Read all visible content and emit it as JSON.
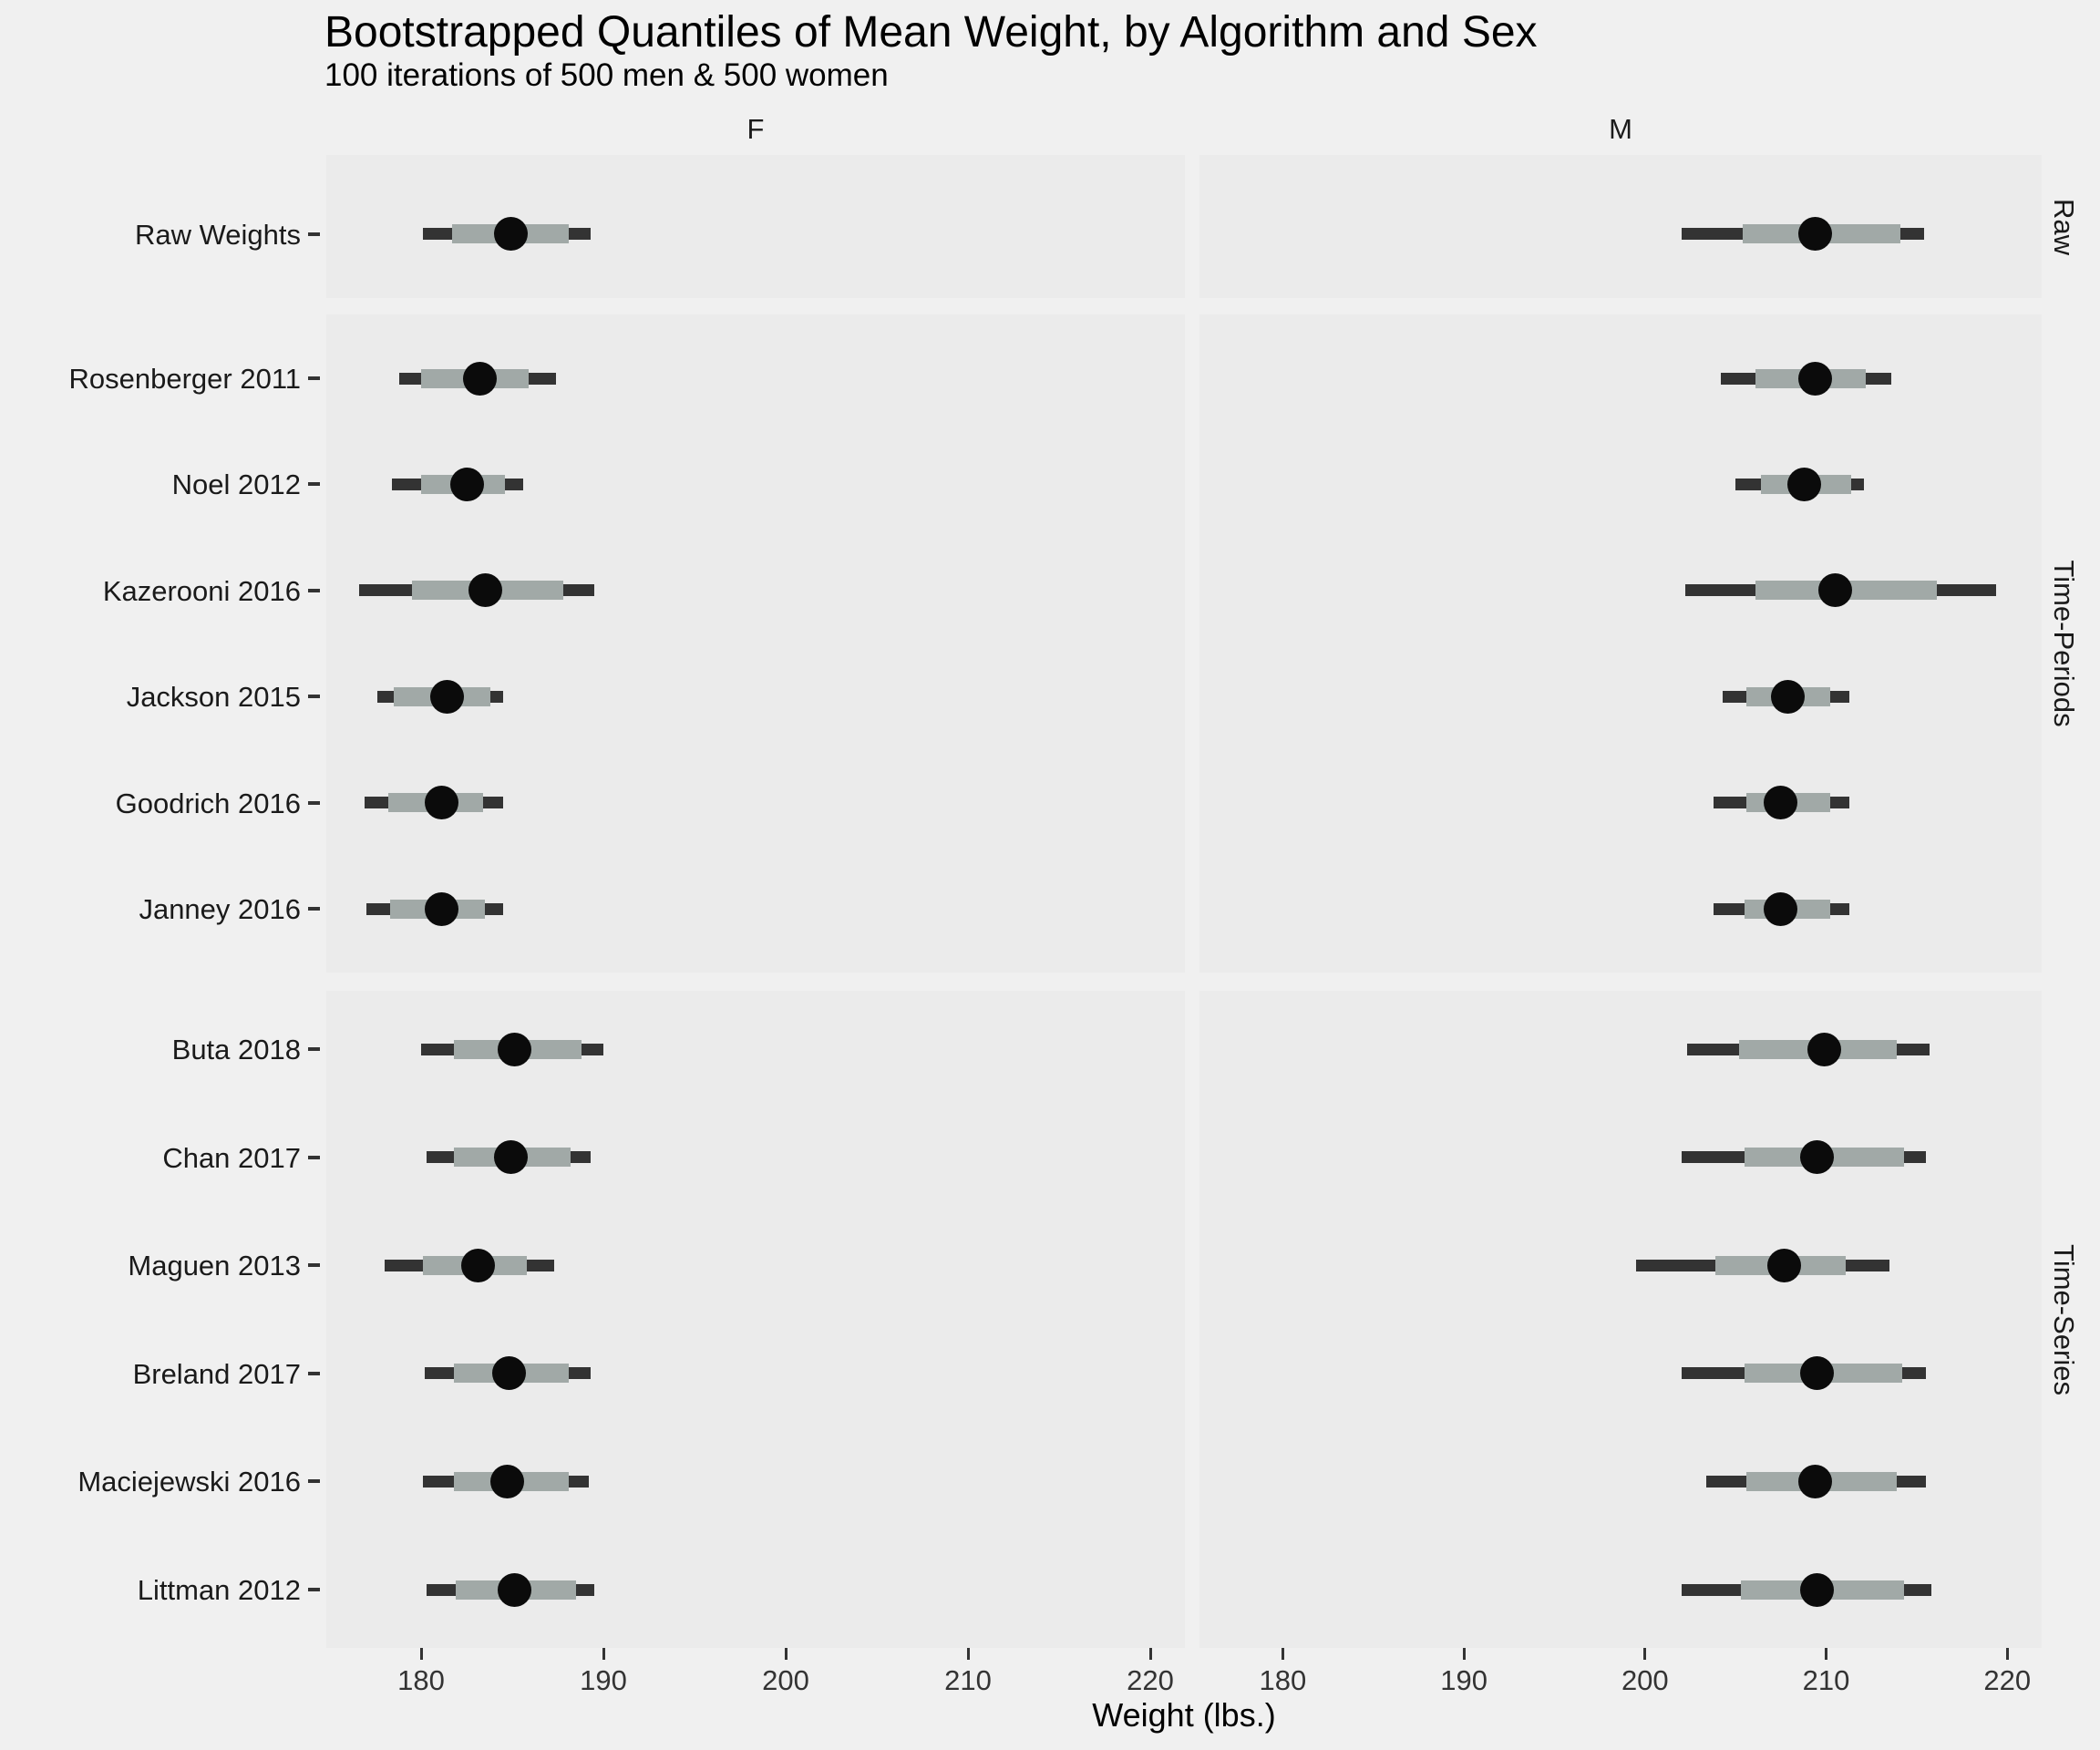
{
  "title": "Bootstrapped Quantiles of Mean Weight, by Algorithm and Sex",
  "subtitle": "100 iterations of 500 men & 500 women",
  "colors": {
    "figure_bg": "#F0F0F0",
    "panel_bg": "#EBEBEB",
    "interquartile_box": "#A1A9A7",
    "outer_range_bar": "#333333",
    "median_point": "#0B0B0B",
    "axis_text": "#333333",
    "label_text": "#1A1A1A"
  },
  "chart_data": {
    "type": "pointrange",
    "orientation": "horizontal",
    "x_unit": "lbs",
    "facet_columns": [
      "F",
      "M"
    ],
    "facet_rows": [
      "Raw",
      "Time-Periods",
      "Time-Series"
    ],
    "x_axis": {
      "label": "Weight (lbs.)",
      "ticks": [
        180,
        190,
        200,
        210,
        220
      ],
      "grid": false
    },
    "groups": [
      {
        "facet_row": "Raw",
        "rows": [
          {
            "label": "Raw Weights",
            "F": {
              "median": 184.9,
              "box": [
                181.7,
                188.1
              ],
              "range": [
                180.1,
                189.3
              ]
            },
            "M": {
              "median": 209.4,
              "box": [
                205.4,
                214.1
              ],
              "range": [
                202.0,
                215.4
              ]
            }
          }
        ]
      },
      {
        "facet_row": "Time-Periods",
        "rows": [
          {
            "label": "Rosenberger 2011",
            "F": {
              "median": 183.2,
              "box": [
                180.0,
                185.9
              ],
              "range": [
                178.8,
                187.4
              ]
            },
            "M": {
              "median": 209.4,
              "box": [
                206.1,
                212.2
              ],
              "range": [
                204.2,
                213.6
              ]
            }
          },
          {
            "label": "Noel 2012",
            "F": {
              "median": 182.5,
              "box": [
                180.0,
                184.6
              ],
              "range": [
                178.4,
                185.6
              ]
            },
            "M": {
              "median": 208.8,
              "box": [
                206.4,
                211.4
              ],
              "range": [
                205.0,
                212.1
              ]
            }
          },
          {
            "label": "Kazerooni 2016",
            "F": {
              "median": 183.5,
              "box": [
                179.5,
                187.8
              ],
              "range": [
                176.6,
                189.5
              ]
            },
            "M": {
              "median": 210.5,
              "box": [
                206.1,
                216.1
              ],
              "range": [
                202.2,
                219.4
              ]
            }
          },
          {
            "label": "Jackson 2015",
            "F": {
              "median": 181.4,
              "box": [
                178.5,
                183.8
              ],
              "range": [
                177.6,
                184.5
              ]
            },
            "M": {
              "median": 207.9,
              "box": [
                205.6,
                210.2
              ],
              "range": [
                204.3,
                211.3
              ]
            }
          },
          {
            "label": "Goodrich 2016",
            "F": {
              "median": 181.1,
              "box": [
                178.2,
                183.4
              ],
              "range": [
                176.9,
                184.5
              ]
            },
            "M": {
              "median": 207.5,
              "box": [
                205.6,
                210.2
              ],
              "range": [
                203.8,
                211.3
              ]
            }
          },
          {
            "label": "Janney 2016",
            "F": {
              "median": 181.1,
              "box": [
                178.3,
                183.5
              ],
              "range": [
                177.0,
                184.5
              ]
            },
            "M": {
              "median": 207.5,
              "box": [
                205.5,
                210.2
              ],
              "range": [
                203.8,
                211.3
              ]
            }
          }
        ]
      },
      {
        "facet_row": "Time-Series",
        "rows": [
          {
            "label": "Buta 2018",
            "F": {
              "median": 185.1,
              "box": [
                181.8,
                188.8
              ],
              "range": [
                180.0,
                190.0
              ]
            },
            "M": {
              "median": 209.9,
              "box": [
                205.2,
                213.9
              ],
              "range": [
                202.3,
                215.7
              ]
            }
          },
          {
            "label": "Chan 2017",
            "F": {
              "median": 184.9,
              "box": [
                181.8,
                188.2
              ],
              "range": [
                180.3,
                189.3
              ]
            },
            "M": {
              "median": 209.5,
              "box": [
                205.5,
                214.3
              ],
              "range": [
                202.0,
                215.5
              ]
            }
          },
          {
            "label": "Maguen 2013",
            "F": {
              "median": 183.1,
              "box": [
                180.1,
                185.8
              ],
              "range": [
                178.0,
                187.3
              ]
            },
            "M": {
              "median": 207.7,
              "box": [
                203.9,
                211.1
              ],
              "range": [
                199.5,
                213.5
              ]
            }
          },
          {
            "label": "Breland 2017",
            "F": {
              "median": 184.8,
              "box": [
                181.8,
                188.1
              ],
              "range": [
                180.2,
                189.3
              ]
            },
            "M": {
              "median": 209.5,
              "box": [
                205.5,
                214.2
              ],
              "range": [
                202.0,
                215.5
              ]
            }
          },
          {
            "label": "Maciejewski 2016",
            "F": {
              "median": 184.7,
              "box": [
                181.8,
                188.1
              ],
              "range": [
                180.1,
                189.2
              ]
            },
            "M": {
              "median": 209.4,
              "box": [
                205.6,
                213.9
              ],
              "range": [
                203.4,
                215.5
              ]
            }
          },
          {
            "label": "Littman 2012",
            "F": {
              "median": 185.1,
              "box": [
                181.9,
                188.5
              ],
              "range": [
                180.3,
                189.5
              ]
            },
            "M": {
              "median": 209.5,
              "box": [
                205.3,
                214.3
              ],
              "range": [
                202.0,
                215.8
              ]
            }
          }
        ]
      }
    ]
  }
}
